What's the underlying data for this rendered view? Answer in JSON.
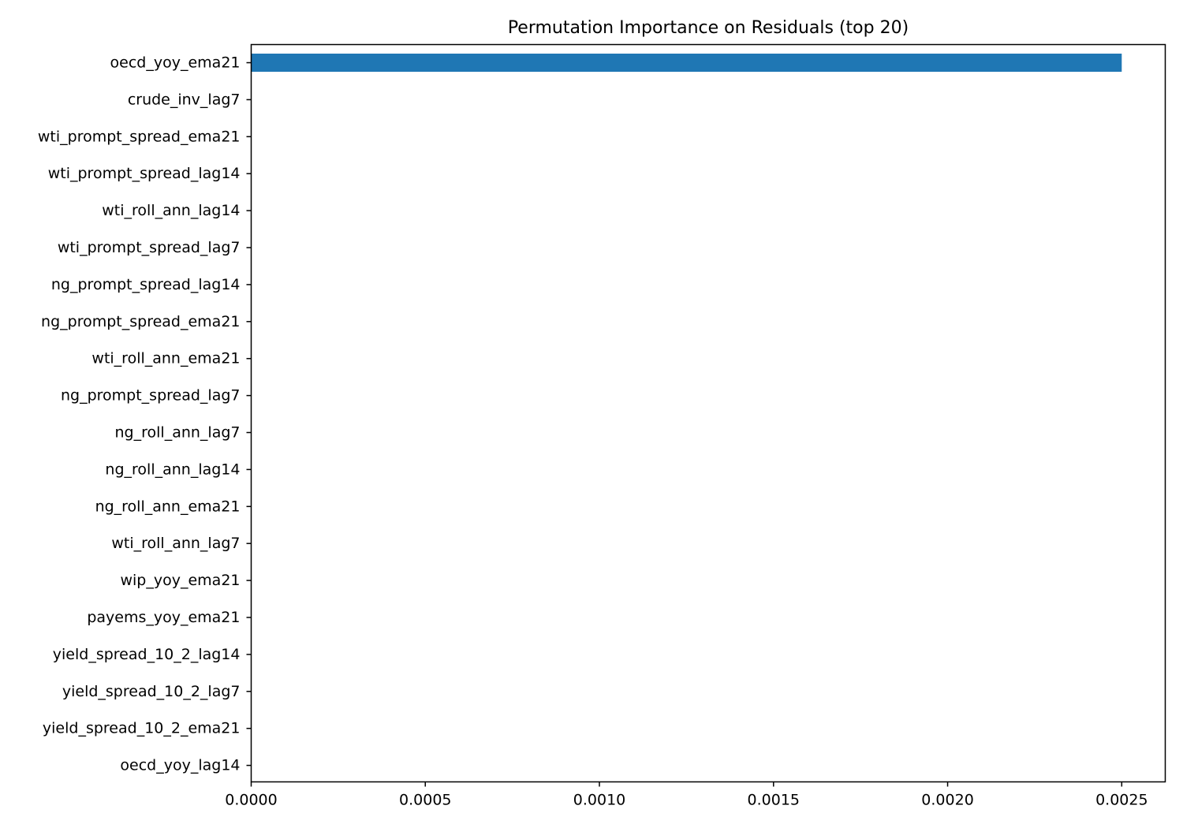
{
  "chart_data": {
    "type": "bar",
    "orientation": "horizontal",
    "title": "Permutation Importance on Residuals (top 20)",
    "xlabel": "",
    "ylabel": "",
    "xlim": [
      0,
      0.002625
    ],
    "x_ticks": [
      0.0,
      0.0005,
      0.001,
      0.0015,
      0.002,
      0.0025
    ],
    "x_tick_labels": [
      "0.0000",
      "0.0005",
      "0.0010",
      "0.0015",
      "0.0020",
      "0.0025"
    ],
    "grid": false,
    "legend": "none",
    "bar_color": "#1f77b4",
    "categories": [
      "oecd_yoy_ema21",
      "crude_inv_lag7",
      "wti_prompt_spread_ema21",
      "wti_prompt_spread_lag14",
      "wti_roll_ann_lag14",
      "wti_prompt_spread_lag7",
      "ng_prompt_spread_lag14",
      "ng_prompt_spread_ema21",
      "wti_roll_ann_ema21",
      "ng_prompt_spread_lag7",
      "ng_roll_ann_lag7",
      "ng_roll_ann_lag14",
      "ng_roll_ann_ema21",
      "wti_roll_ann_lag7",
      "wip_yoy_ema21",
      "payems_yoy_ema21",
      "yield_spread_10_2_lag14",
      "yield_spread_10_2_lag7",
      "yield_spread_10_2_ema21",
      "oecd_yoy_lag14"
    ],
    "values": [
      0.0025,
      0,
      0,
      0,
      0,
      0,
      0,
      0,
      0,
      0,
      0,
      0,
      0,
      0,
      0,
      0,
      0,
      0,
      0,
      0
    ]
  }
}
